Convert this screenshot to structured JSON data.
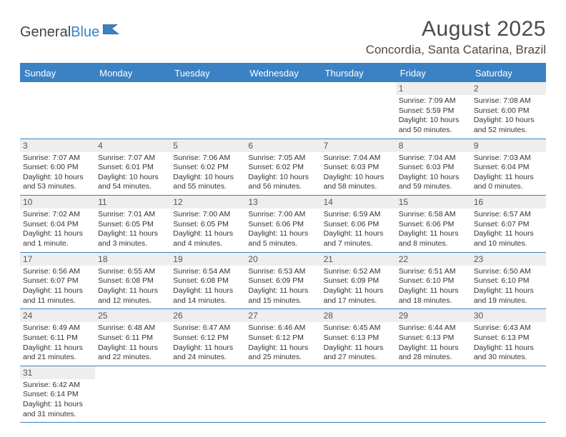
{
  "logo": {
    "general": "General",
    "blue": "Blue"
  },
  "title": "August 2025",
  "location": "Concordia, Santa Catarina, Brazil",
  "colors": {
    "accent": "#3b82c4",
    "stripe": "#eeeeee",
    "text": "#333333"
  },
  "dayNames": [
    "Sunday",
    "Monday",
    "Tuesday",
    "Wednesday",
    "Thursday",
    "Friday",
    "Saturday"
  ],
  "weeks": [
    [
      {
        "empty": true
      },
      {
        "empty": true
      },
      {
        "empty": true
      },
      {
        "empty": true
      },
      {
        "empty": true
      },
      {
        "day": "1",
        "sunrise": "Sunrise: 7:09 AM",
        "sunset": "Sunset: 5:59 PM",
        "daylight": "Daylight: 10 hours and 50 minutes."
      },
      {
        "day": "2",
        "sunrise": "Sunrise: 7:08 AM",
        "sunset": "Sunset: 6:00 PM",
        "daylight": "Daylight: 10 hours and 52 minutes."
      }
    ],
    [
      {
        "day": "3",
        "sunrise": "Sunrise: 7:07 AM",
        "sunset": "Sunset: 6:00 PM",
        "daylight": "Daylight: 10 hours and 53 minutes."
      },
      {
        "day": "4",
        "sunrise": "Sunrise: 7:07 AM",
        "sunset": "Sunset: 6:01 PM",
        "daylight": "Daylight: 10 hours and 54 minutes."
      },
      {
        "day": "5",
        "sunrise": "Sunrise: 7:06 AM",
        "sunset": "Sunset: 6:02 PM",
        "daylight": "Daylight: 10 hours and 55 minutes."
      },
      {
        "day": "6",
        "sunrise": "Sunrise: 7:05 AM",
        "sunset": "Sunset: 6:02 PM",
        "daylight": "Daylight: 10 hours and 56 minutes."
      },
      {
        "day": "7",
        "sunrise": "Sunrise: 7:04 AM",
        "sunset": "Sunset: 6:03 PM",
        "daylight": "Daylight: 10 hours and 58 minutes."
      },
      {
        "day": "8",
        "sunrise": "Sunrise: 7:04 AM",
        "sunset": "Sunset: 6:03 PM",
        "daylight": "Daylight: 10 hours and 59 minutes."
      },
      {
        "day": "9",
        "sunrise": "Sunrise: 7:03 AM",
        "sunset": "Sunset: 6:04 PM",
        "daylight": "Daylight: 11 hours and 0 minutes."
      }
    ],
    [
      {
        "day": "10",
        "sunrise": "Sunrise: 7:02 AM",
        "sunset": "Sunset: 6:04 PM",
        "daylight": "Daylight: 11 hours and 1 minute."
      },
      {
        "day": "11",
        "sunrise": "Sunrise: 7:01 AM",
        "sunset": "Sunset: 6:05 PM",
        "daylight": "Daylight: 11 hours and 3 minutes."
      },
      {
        "day": "12",
        "sunrise": "Sunrise: 7:00 AM",
        "sunset": "Sunset: 6:05 PM",
        "daylight": "Daylight: 11 hours and 4 minutes."
      },
      {
        "day": "13",
        "sunrise": "Sunrise: 7:00 AM",
        "sunset": "Sunset: 6:06 PM",
        "daylight": "Daylight: 11 hours and 5 minutes."
      },
      {
        "day": "14",
        "sunrise": "Sunrise: 6:59 AM",
        "sunset": "Sunset: 6:06 PM",
        "daylight": "Daylight: 11 hours and 7 minutes."
      },
      {
        "day": "15",
        "sunrise": "Sunrise: 6:58 AM",
        "sunset": "Sunset: 6:06 PM",
        "daylight": "Daylight: 11 hours and 8 minutes."
      },
      {
        "day": "16",
        "sunrise": "Sunrise: 6:57 AM",
        "sunset": "Sunset: 6:07 PM",
        "daylight": "Daylight: 11 hours and 10 minutes."
      }
    ],
    [
      {
        "day": "17",
        "sunrise": "Sunrise: 6:56 AM",
        "sunset": "Sunset: 6:07 PM",
        "daylight": "Daylight: 11 hours and 11 minutes."
      },
      {
        "day": "18",
        "sunrise": "Sunrise: 6:55 AM",
        "sunset": "Sunset: 6:08 PM",
        "daylight": "Daylight: 11 hours and 12 minutes."
      },
      {
        "day": "19",
        "sunrise": "Sunrise: 6:54 AM",
        "sunset": "Sunset: 6:08 PM",
        "daylight": "Daylight: 11 hours and 14 minutes."
      },
      {
        "day": "20",
        "sunrise": "Sunrise: 6:53 AM",
        "sunset": "Sunset: 6:09 PM",
        "daylight": "Daylight: 11 hours and 15 minutes."
      },
      {
        "day": "21",
        "sunrise": "Sunrise: 6:52 AM",
        "sunset": "Sunset: 6:09 PM",
        "daylight": "Daylight: 11 hours and 17 minutes."
      },
      {
        "day": "22",
        "sunrise": "Sunrise: 6:51 AM",
        "sunset": "Sunset: 6:10 PM",
        "daylight": "Daylight: 11 hours and 18 minutes."
      },
      {
        "day": "23",
        "sunrise": "Sunrise: 6:50 AM",
        "sunset": "Sunset: 6:10 PM",
        "daylight": "Daylight: 11 hours and 19 minutes."
      }
    ],
    [
      {
        "day": "24",
        "sunrise": "Sunrise: 6:49 AM",
        "sunset": "Sunset: 6:11 PM",
        "daylight": "Daylight: 11 hours and 21 minutes."
      },
      {
        "day": "25",
        "sunrise": "Sunrise: 6:48 AM",
        "sunset": "Sunset: 6:11 PM",
        "daylight": "Daylight: 11 hours and 22 minutes."
      },
      {
        "day": "26",
        "sunrise": "Sunrise: 6:47 AM",
        "sunset": "Sunset: 6:12 PM",
        "daylight": "Daylight: 11 hours and 24 minutes."
      },
      {
        "day": "27",
        "sunrise": "Sunrise: 6:46 AM",
        "sunset": "Sunset: 6:12 PM",
        "daylight": "Daylight: 11 hours and 25 minutes."
      },
      {
        "day": "28",
        "sunrise": "Sunrise: 6:45 AM",
        "sunset": "Sunset: 6:13 PM",
        "daylight": "Daylight: 11 hours and 27 minutes."
      },
      {
        "day": "29",
        "sunrise": "Sunrise: 6:44 AM",
        "sunset": "Sunset: 6:13 PM",
        "daylight": "Daylight: 11 hours and 28 minutes."
      },
      {
        "day": "30",
        "sunrise": "Sunrise: 6:43 AM",
        "sunset": "Sunset: 6:13 PM",
        "daylight": "Daylight: 11 hours and 30 minutes."
      }
    ],
    [
      {
        "day": "31",
        "sunrise": "Sunrise: 6:42 AM",
        "sunset": "Sunset: 6:14 PM",
        "daylight": "Daylight: 11 hours and 31 minutes."
      },
      {
        "empty": true
      },
      {
        "empty": true
      },
      {
        "empty": true
      },
      {
        "empty": true
      },
      {
        "empty": true
      },
      {
        "empty": true
      }
    ]
  ]
}
